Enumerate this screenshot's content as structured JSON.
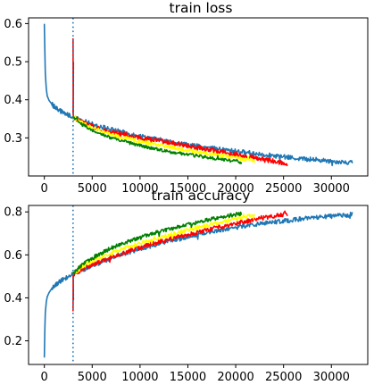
{
  "chart_data": [
    {
      "type": "line",
      "title": "train loss",
      "xlim": [
        -1650,
        33800
      ],
      "ylim": [
        0.2,
        0.615
      ],
      "xticks": [
        0,
        5000,
        10000,
        15000,
        20000,
        25000,
        30000
      ],
      "yticks": [
        0.3,
        0.4,
        0.5,
        0.6
      ],
      "xtick_labels": [
        "0",
        "5000",
        "10000",
        "15000",
        "20000",
        "25000",
        "30000"
      ],
      "ytick_labels": [
        "0.3",
        "0.4",
        "0.5",
        "0.6"
      ],
      "vline": {
        "x": 3000,
        "color": "#1f77b4",
        "style": "dotted"
      },
      "grid": false,
      "series": [
        {
          "color": "#1f77b4",
          "noise": 0.006,
          "spike": [
            3000,
            0.0
          ],
          "x": [
            0,
            50,
            100,
            200,
            300,
            500,
            800,
            1200,
            1600,
            2000,
            2500,
            3000,
            4000,
            5000,
            7000,
            9000,
            11000,
            13000,
            15000,
            17000,
            19000,
            21000,
            23000,
            25000,
            27000,
            29000,
            31000,
            32200
          ],
          "y": [
            0.598,
            0.53,
            0.47,
            0.43,
            0.41,
            0.398,
            0.388,
            0.378,
            0.372,
            0.366,
            0.36,
            0.354,
            0.345,
            0.336,
            0.322,
            0.31,
            0.3,
            0.29,
            0.282,
            0.274,
            0.268,
            0.262,
            0.256,
            0.25,
            0.245,
            0.241,
            0.237,
            0.235
          ]
        },
        {
          "color": "#ff0000",
          "noise": 0.006,
          "spike": [
            3000,
            0.56
          ],
          "x": [
            3000,
            4000,
            5000,
            7000,
            9000,
            11000,
            13000,
            15000,
            17000,
            19000,
            21000,
            23000,
            25400
          ],
          "y": [
            0.354,
            0.34,
            0.33,
            0.315,
            0.305,
            0.296,
            0.288,
            0.279,
            0.27,
            0.262,
            0.252,
            0.243,
            0.232
          ]
        },
        {
          "color": "#ffff00",
          "noise": 0.005,
          "spike": [
            3000,
            0.0
          ],
          "x": [
            3000,
            4000,
            5000,
            7000,
            9000,
            11000,
            13000,
            15000,
            17000,
            19000,
            21000,
            22000
          ],
          "y": [
            0.354,
            0.338,
            0.326,
            0.309,
            0.296,
            0.286,
            0.276,
            0.267,
            0.259,
            0.251,
            0.244,
            0.24
          ]
        },
        {
          "color": "#008000",
          "noise": 0.004,
          "spike": [
            3000,
            0.0
          ],
          "x": [
            3000,
            4000,
            5000,
            7000,
            9000,
            11000,
            13000,
            15000,
            17000,
            19000,
            20600
          ],
          "y": [
            0.354,
            0.334,
            0.32,
            0.3,
            0.286,
            0.274,
            0.264,
            0.256,
            0.249,
            0.242,
            0.236
          ]
        }
      ]
    },
    {
      "type": "line",
      "title": "train accuracy",
      "xlim": [
        -1650,
        33800
      ],
      "ylim": [
        0.09,
        0.83
      ],
      "xticks": [
        0,
        5000,
        10000,
        15000,
        20000,
        25000,
        30000
      ],
      "yticks": [
        0.2,
        0.4,
        0.6,
        0.8
      ],
      "xtick_labels": [
        "0",
        "5000",
        "10000",
        "15000",
        "20000",
        "25000",
        "30000"
      ],
      "ytick_labels": [
        "0.2",
        "0.4",
        "0.6",
        "0.8"
      ],
      "vline": {
        "x": 3000,
        "color": "#1f77b4",
        "style": "dotted"
      },
      "grid": false,
      "series": [
        {
          "color": "#1f77b4",
          "noise": 0.01,
          "spike": [
            3000,
            0.0
          ],
          "x": [
            0,
            50,
            100,
            200,
            300,
            500,
            800,
            1200,
            1600,
            2000,
            2500,
            3000,
            4000,
            5000,
            7000,
            9000,
            11000,
            13000,
            15000,
            17000,
            19000,
            21000,
            23000,
            25000,
            27000,
            29000,
            31000,
            32200
          ],
          "y": [
            0.125,
            0.25,
            0.33,
            0.38,
            0.405,
            0.425,
            0.445,
            0.46,
            0.475,
            0.487,
            0.498,
            0.51,
            0.53,
            0.55,
            0.585,
            0.615,
            0.64,
            0.665,
            0.685,
            0.705,
            0.72,
            0.735,
            0.748,
            0.758,
            0.768,
            0.776,
            0.783,
            0.787
          ]
        },
        {
          "color": "#ff0000",
          "noise": 0.01,
          "spike": [
            3000,
            0.34
          ],
          "x": [
            3000,
            4000,
            5000,
            7000,
            9000,
            11000,
            13000,
            15000,
            17000,
            19000,
            21000,
            23000,
            25400
          ],
          "y": [
            0.51,
            0.535,
            0.555,
            0.59,
            0.62,
            0.648,
            0.672,
            0.695,
            0.716,
            0.737,
            0.756,
            0.773,
            0.792
          ]
        },
        {
          "color": "#ffff00",
          "noise": 0.009,
          "spike": [
            3000,
            0.0
          ],
          "x": [
            3000,
            4000,
            5000,
            7000,
            9000,
            11000,
            13000,
            15000,
            17000,
            19000,
            21000,
            22000
          ],
          "y": [
            0.51,
            0.545,
            0.57,
            0.61,
            0.64,
            0.668,
            0.693,
            0.715,
            0.737,
            0.758,
            0.777,
            0.786
          ]
        },
        {
          "color": "#008000",
          "noise": 0.009,
          "spike": [
            3000,
            0.0
          ],
          "x": [
            3000,
            4000,
            5000,
            7000,
            9000,
            11000,
            13000,
            15000,
            17000,
            19000,
            20600
          ],
          "y": [
            0.51,
            0.555,
            0.585,
            0.632,
            0.665,
            0.695,
            0.72,
            0.742,
            0.762,
            0.78,
            0.793
          ]
        }
      ]
    }
  ]
}
